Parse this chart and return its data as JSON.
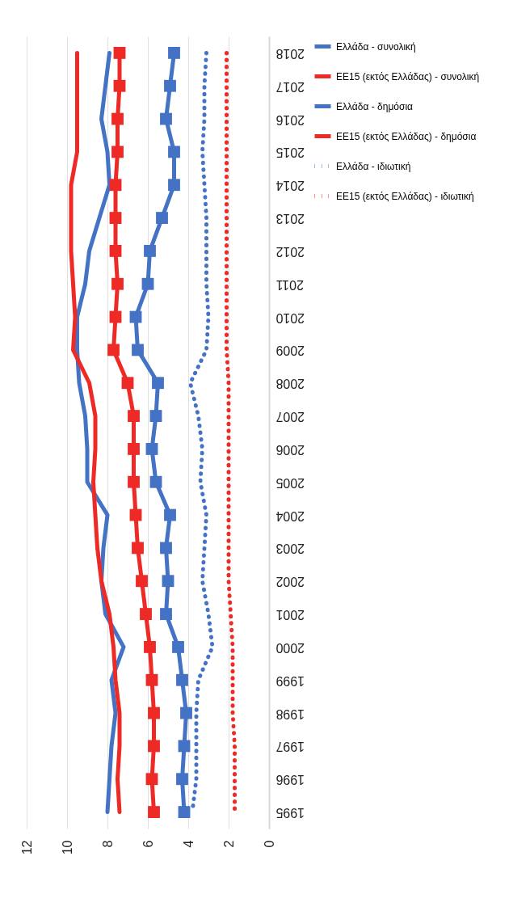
{
  "chart_data": {
    "type": "line",
    "orientation": "horizontal",
    "categories": [
      "2018",
      "2017",
      "2016",
      "2015",
      "2014",
      "2013",
      "2012",
      "2011",
      "2010",
      "2009",
      "2008",
      "2007",
      "2006",
      "2005",
      "2004",
      "2003",
      "2002",
      "2001",
      "2000",
      "1999",
      "1998",
      "1997",
      "1996",
      "1995"
    ],
    "series": [
      {
        "name": "Ελλάδα - συνολική",
        "color": "#4472c4",
        "values": [
          7.9,
          8.1,
          8.3,
          8.0,
          7.9,
          8.4,
          8.9,
          9.1,
          9.5,
          9.5,
          9.4,
          9.1,
          9.0,
          9.0,
          8.0,
          8.2,
          8.3,
          8.1,
          7.2,
          7.8,
          7.6,
          7.8,
          7.9,
          8.0
        ]
      },
      {
        "name": "ΕΕ15 (εκτός Ελλάδας) - συνολική",
        "color": "#ee2a27",
        "values": [
          9.5,
          9.5,
          9.5,
          9.5,
          9.8,
          9.8,
          9.8,
          9.7,
          9.6,
          9.7,
          8.9,
          8.6,
          8.6,
          8.7,
          8.6,
          8.5,
          8.3,
          7.9,
          7.7,
          7.6,
          7.4,
          7.4,
          7.5,
          7.4
        ]
      },
      {
        "name": "Ελλάδα - δημόσια",
        "color": "#4472c4",
        "marker": "square",
        "values": [
          4.7,
          4.9,
          5.1,
          4.7,
          4.7,
          5.3,
          5.9,
          6.0,
          6.6,
          6.5,
          5.5,
          5.6,
          5.8,
          5.6,
          4.9,
          5.1,
          5.0,
          5.1,
          4.5,
          4.3,
          4.1,
          4.2,
          4.3,
          4.2
        ]
      },
      {
        "name": "ΕΕ15 (εκτός Ελλάδας) - δημόσια",
        "color": "#ee2a27",
        "marker": "square",
        "values": [
          7.4,
          7.4,
          7.5,
          7.5,
          7.6,
          7.6,
          7.6,
          7.5,
          7.6,
          7.7,
          7.0,
          6.7,
          6.7,
          6.7,
          6.6,
          6.5,
          6.3,
          6.1,
          5.9,
          5.8,
          5.7,
          5.7,
          5.8,
          5.7
        ]
      },
      {
        "name": "Ελλάδα - ιδιωτική",
        "color": "#4472c4",
        "line_style": "dotted",
        "values": [
          3.1,
          3.2,
          3.2,
          3.3,
          3.2,
          3.1,
          3.1,
          3.1,
          3.0,
          3.1,
          3.9,
          3.5,
          3.3,
          3.4,
          3.1,
          3.2,
          3.3,
          3.0,
          2.8,
          3.5,
          3.6,
          3.6,
          3.6,
          3.8
        ]
      },
      {
        "name": "ΕΕ15 (εκτός Ελλάδας) - ιδιωτική",
        "color": "#ee2a27",
        "line_style": "dotted",
        "values": [
          2.1,
          2.1,
          2.1,
          2.1,
          2.1,
          2.1,
          2.1,
          2.1,
          2.1,
          2.1,
          2.0,
          2.0,
          2.0,
          2.0,
          2.0,
          2.0,
          2.0,
          1.9,
          1.8,
          1.8,
          1.8,
          1.7,
          1.7,
          1.7
        ]
      }
    ],
    "xlim": [
      12,
      0
    ],
    "xticks": [
      12,
      10,
      8,
      6,
      4,
      2,
      0
    ],
    "grid": "x",
    "legend": "right"
  }
}
